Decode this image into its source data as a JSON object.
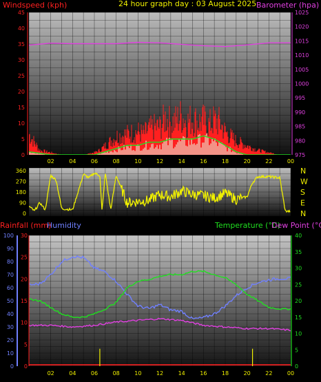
{
  "title": "24 hour graph day : 03 August 2025",
  "colors": {
    "red": "#ff2020",
    "magenta": "#e040e0",
    "yellow": "#f0f000",
    "green": "#20e020",
    "blue": "#7080ff",
    "white": "#ffffff",
    "grid": "#000000"
  },
  "chart_data": [
    {
      "type": "area",
      "name": "wind-baro",
      "y_left_label": "Windspeed (kph)",
      "y_right_label": "Barometer (hpa)",
      "y_left_ticks": [
        "0",
        "5",
        "10",
        "15",
        "20",
        "25",
        "30",
        "35",
        "40",
        "45"
      ],
      "y_right_ticks": [
        "975",
        "980",
        "985",
        "990",
        "995",
        "1000",
        "1005",
        "1010",
        "1015",
        "1020",
        "1025"
      ],
      "x_ticks": [
        "02",
        "04",
        "06",
        "08",
        "10",
        "12",
        "14",
        "16",
        "18",
        "20",
        "22",
        "00"
      ],
      "ylim_left": [
        0,
        45
      ],
      "ylim_right": [
        975,
        1025
      ],
      "series": [
        {
          "name": "Windspeed (kph)",
          "hours": [
            0,
            1,
            2,
            3,
            4,
            5,
            6,
            6.5,
            7,
            8,
            9,
            10,
            10.5,
            11,
            11.5,
            12,
            12.5,
            13,
            13.5,
            14,
            14.5,
            15,
            15.5,
            16,
            16.5,
            17,
            17.5,
            18,
            19,
            20,
            21,
            22,
            23,
            24
          ],
          "values": [
            9,
            2,
            1,
            0,
            0,
            0,
            1,
            2,
            4,
            8,
            9,
            10,
            9,
            11,
            12,
            12,
            16,
            14,
            15,
            17,
            14,
            16,
            14,
            15,
            13,
            15,
            14,
            10,
            6,
            4,
            2,
            1,
            0,
            0
          ]
        },
        {
          "name": "Wind average (kph)",
          "hours": [
            0,
            2,
            4,
            6,
            7,
            8,
            9,
            10,
            11,
            12,
            13,
            14,
            15,
            16,
            17,
            18,
            19,
            20,
            22,
            24
          ],
          "values": [
            1,
            0,
            0,
            0,
            1,
            2,
            3,
            3,
            4,
            4,
            5,
            5,
            5,
            6,
            5,
            3,
            1,
            0,
            0,
            0
          ]
        },
        {
          "name": "Barometer (hpa)",
          "hours": [
            0,
            2,
            4,
            6,
            8,
            10,
            12,
            14,
            16,
            18,
            20,
            22,
            24
          ],
          "values": [
            1013.5,
            1014.2,
            1014,
            1014,
            1014,
            1014.5,
            1014.3,
            1013.8,
            1013.3,
            1013,
            1013.6,
            1014.3,
            1014.3
          ]
        }
      ]
    },
    {
      "type": "line",
      "name": "wind-direction",
      "y_ticks": [
        "0",
        "90",
        "180",
        "270",
        "360"
      ],
      "compass_labels": [
        "N",
        "W",
        "S",
        "E",
        "N"
      ],
      "ylim": [
        0,
        360
      ],
      "series": [
        {
          "name": "Wind direction",
          "hours": [
            0,
            0.5,
            1,
            1.5,
            2,
            2.5,
            3,
            4,
            5,
            5.5,
            6,
            6.5,
            6.7,
            7,
            7.5,
            8,
            9,
            10,
            11,
            12,
            13,
            14,
            15,
            16,
            17,
            18,
            19,
            20,
            20.5,
            21,
            22,
            23,
            23.5,
            24
          ],
          "values": [
            60,
            20,
            90,
            30,
            320,
            280,
            40,
            30,
            330,
            300,
            340,
            320,
            20,
            340,
            30,
            320,
            90,
            100,
            110,
            160,
            140,
            190,
            160,
            150,
            130,
            170,
            120,
            140,
            260,
            310,
            310,
            300,
            20,
            15
          ]
        }
      ]
    },
    {
      "type": "line",
      "name": "temp-hum-rain",
      "y_left_rain_label": "Rainfall (mm)",
      "y_left_hum_label": "Humidity",
      "y_right_temp_label": "Temperature (°C)",
      "y_right_dew_label": "Dew Point (°C)",
      "rain_ticks": [
        "0",
        "5",
        "10",
        "15",
        "20",
        "25",
        "30"
      ],
      "hum_ticks": [
        "0",
        "10",
        "20",
        "30",
        "40",
        "50",
        "60",
        "70",
        "80",
        "90",
        "100"
      ],
      "temp_ticks": [
        "0",
        "5",
        "10",
        "15",
        "20",
        "25",
        "30",
        "35",
        "40"
      ],
      "x_ticks": [
        "02",
        "04",
        "06",
        "08",
        "10",
        "12",
        "14",
        "16",
        "18",
        "20",
        "22",
        "00"
      ],
      "ylim_rain": [
        0,
        30
      ],
      "ylim_hum": [
        0,
        100
      ],
      "ylim_temp": [
        0,
        40
      ],
      "series": [
        {
          "name": "Humidity",
          "hours": [
            0,
            1,
            2,
            3,
            4,
            5,
            6,
            7,
            8,
            9,
            10,
            11,
            12,
            13,
            14,
            15,
            16,
            17,
            18,
            19,
            20,
            21,
            22,
            23,
            24
          ],
          "values": [
            62,
            63,
            70,
            80,
            84,
            83,
            75,
            72,
            65,
            55,
            46,
            44,
            47,
            43,
            42,
            36,
            37,
            40,
            46,
            54,
            60,
            64,
            66,
            67,
            67
          ]
        },
        {
          "name": "Temperature (°C)",
          "hours": [
            0,
            1,
            2,
            3,
            4,
            5,
            6,
            7,
            8,
            9,
            10,
            11,
            12,
            13,
            14,
            15,
            16,
            17,
            18,
            19,
            20,
            21,
            22,
            23,
            24
          ],
          "values": [
            20.5,
            20,
            18,
            16,
            15,
            15,
            16,
            17.5,
            19.5,
            24,
            26,
            26.5,
            27.5,
            28,
            28,
            29,
            29,
            28,
            27,
            25,
            22,
            20,
            18,
            17.5,
            17.5
          ]
        },
        {
          "name": "Dew Point (°C)",
          "hours": [
            0,
            2,
            4,
            6,
            8,
            10,
            12,
            14,
            16,
            18,
            20,
            22,
            24
          ],
          "values": [
            12.5,
            12.5,
            12,
            12.5,
            13.5,
            14,
            14.5,
            14,
            12.5,
            12,
            11.5,
            11.5,
            11
          ]
        },
        {
          "name": "Rainfall (mm)",
          "hours": [
            0,
            24
          ],
          "values": [
            0.3,
            0.3
          ]
        }
      ]
    }
  ]
}
